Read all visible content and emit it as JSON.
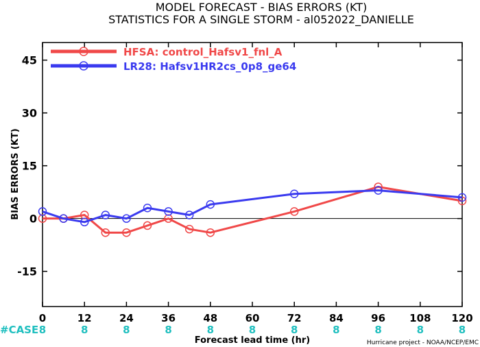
{
  "chart_data": {
    "type": "line",
    "title_line1": "MODEL FORECAST - BIAS ERRORS (KT)",
    "title_line2": "STATISTICS FOR A SINGLE STORM - al052022_DANIELLE",
    "xlabel": "Forecast lead time (hr)",
    "ylabel": "BIAS ERRORS (KT)",
    "xlim": [
      0,
      120
    ],
    "ylim": [
      -25,
      50
    ],
    "x_ticks": [
      0,
      12,
      24,
      36,
      48,
      60,
      72,
      84,
      96,
      108,
      120
    ],
    "y_ticks": [
      -15,
      0,
      15,
      30,
      45
    ],
    "grid": false,
    "legend_position": "top-left",
    "case_label": "#CASE",
    "case_x": [
      0,
      12,
      24,
      36,
      48,
      60,
      72,
      84,
      96,
      108,
      120
    ],
    "case_counts": [
      "8",
      "8",
      "8",
      "8",
      "8",
      "8",
      "8",
      "8",
      "8",
      "8",
      "8"
    ],
    "credit": "Hurricane project - NOAA/NCEP/EMC",
    "series": [
      {
        "name": "HFSA: control_Hafsv1_fnl_A",
        "color": "#f04848",
        "x": [
          0,
          6,
          12,
          18,
          24,
          30,
          36,
          42,
          48,
          72,
          96,
          120
        ],
        "y": [
          0,
          0,
          1,
          -4,
          -4,
          -2,
          0,
          -3,
          -4,
          2,
          9,
          5
        ]
      },
      {
        "name": "LR28: Hafsv1HR2cs_0p8_ge64",
        "color": "#3a3aef",
        "x": [
          0,
          6,
          12,
          18,
          24,
          30,
          36,
          42,
          48,
          72,
          96,
          120
        ],
        "y": [
          2,
          0,
          -1,
          1,
          0,
          3,
          2,
          1,
          4,
          7,
          8,
          6
        ]
      }
    ]
  }
}
